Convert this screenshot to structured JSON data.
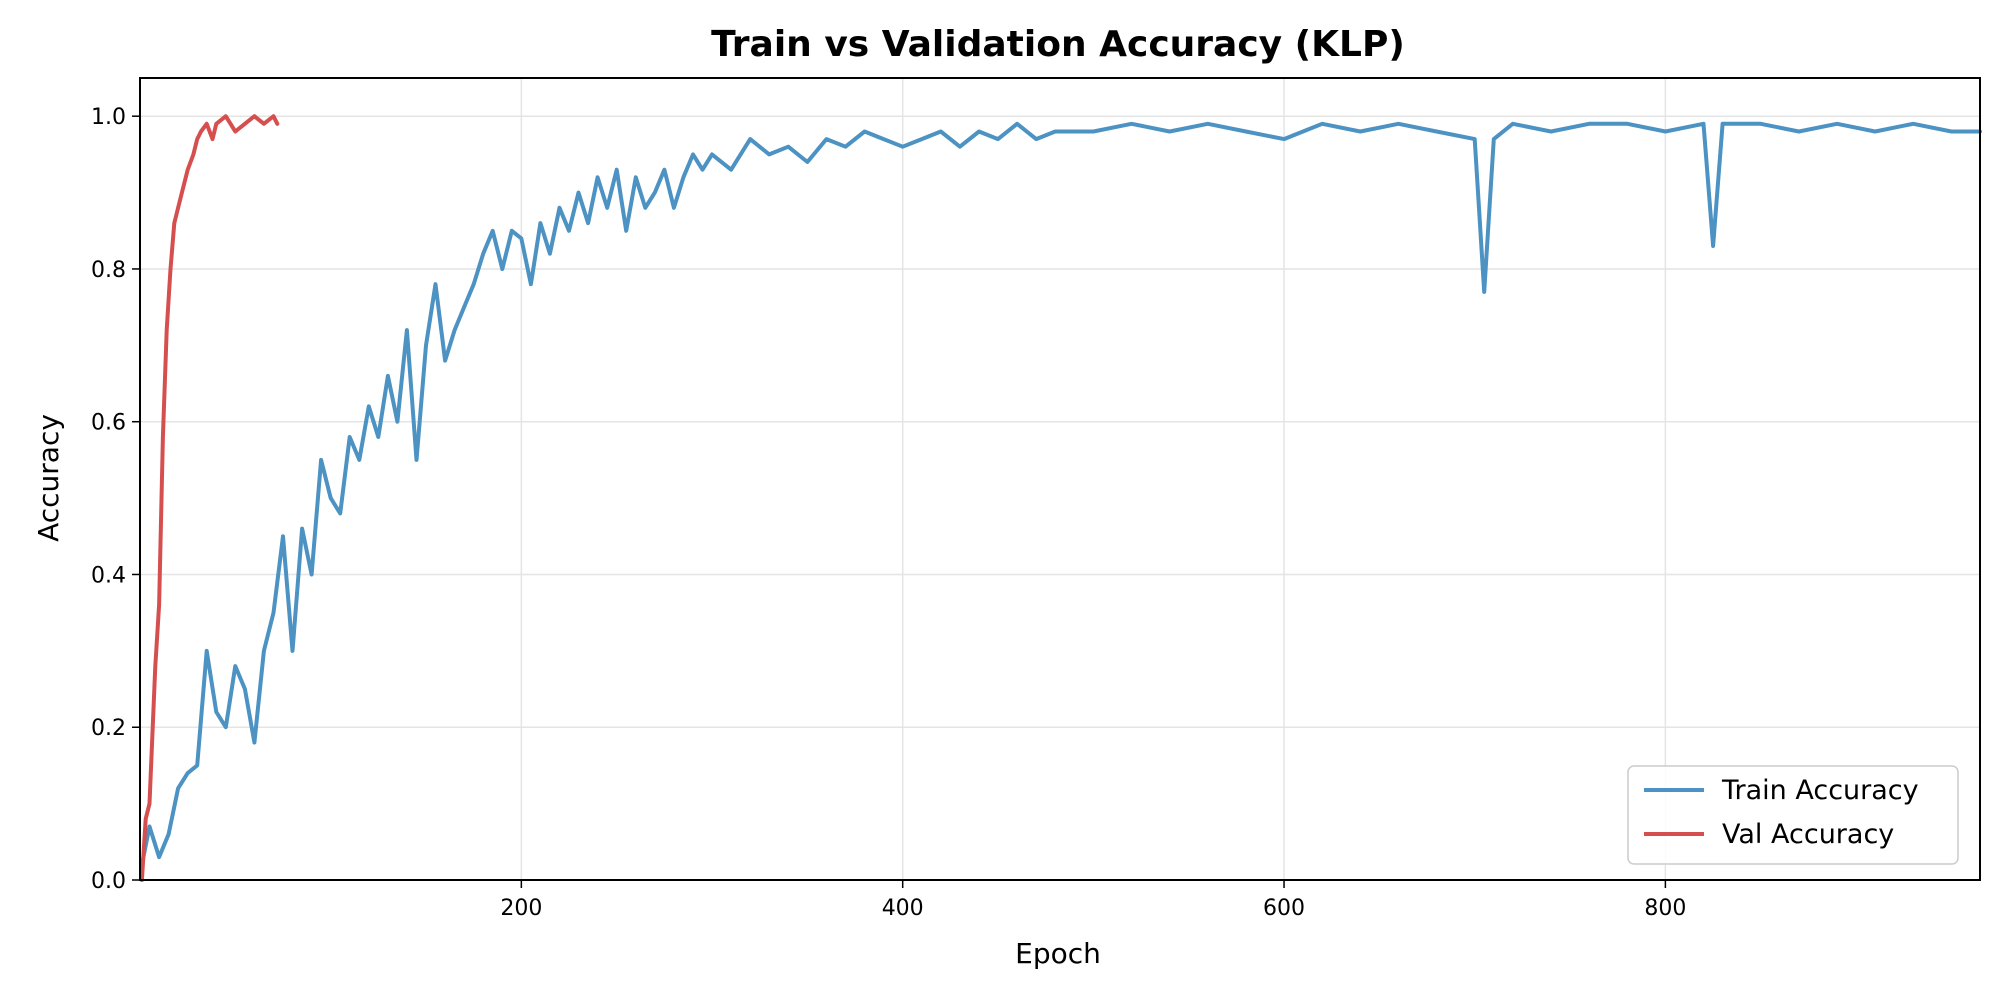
{
  "chart_data": {
    "type": "line",
    "title": "Train vs Validation Accuracy (KLP)",
    "xlabel": "Epoch",
    "ylabel": "Accuracy",
    "xlim": [
      0,
      965
    ],
    "ylim": [
      0,
      1.05
    ],
    "xticks": [
      200,
      400,
      600,
      800
    ],
    "yticks": [
      0.0,
      0.2,
      0.4,
      0.6,
      0.8,
      1.0
    ],
    "xtick_labels": [
      "200",
      "400",
      "600",
      "800"
    ],
    "ytick_labels": [
      "0.0",
      "0.2",
      "0.4",
      "0.6",
      "0.8",
      "1.0"
    ],
    "grid": true,
    "legend_position": "lower right",
    "series": [
      {
        "name": "Train Accuracy",
        "color": "#4c92c3",
        "x": [
          1,
          5,
          10,
          15,
          20,
          25,
          30,
          35,
          40,
          45,
          50,
          55,
          60,
          65,
          70,
          75,
          80,
          85,
          90,
          95,
          100,
          105,
          110,
          115,
          120,
          125,
          130,
          135,
          140,
          145,
          150,
          155,
          160,
          165,
          170,
          175,
          180,
          185,
          190,
          195,
          200,
          205,
          210,
          215,
          220,
          225,
          230,
          235,
          240,
          245,
          250,
          255,
          260,
          265,
          270,
          275,
          280,
          285,
          290,
          295,
          300,
          310,
          320,
          330,
          340,
          350,
          360,
          370,
          380,
          390,
          400,
          410,
          420,
          430,
          440,
          450,
          460,
          470,
          480,
          500,
          520,
          540,
          560,
          580,
          600,
          620,
          640,
          660,
          680,
          700,
          705,
          710,
          720,
          740,
          760,
          780,
          800,
          820,
          825,
          830,
          850,
          870,
          890,
          910,
          930,
          950,
          965
        ],
        "y": [
          0.02,
          0.07,
          0.03,
          0.06,
          0.12,
          0.14,
          0.15,
          0.3,
          0.22,
          0.2,
          0.28,
          0.25,
          0.18,
          0.3,
          0.35,
          0.45,
          0.3,
          0.46,
          0.4,
          0.55,
          0.5,
          0.48,
          0.58,
          0.55,
          0.62,
          0.58,
          0.66,
          0.6,
          0.72,
          0.55,
          0.7,
          0.78,
          0.68,
          0.72,
          0.75,
          0.78,
          0.82,
          0.85,
          0.8,
          0.85,
          0.84,
          0.78,
          0.86,
          0.82,
          0.88,
          0.85,
          0.9,
          0.86,
          0.92,
          0.88,
          0.93,
          0.85,
          0.92,
          0.88,
          0.9,
          0.93,
          0.88,
          0.92,
          0.95,
          0.93,
          0.95,
          0.93,
          0.97,
          0.95,
          0.96,
          0.94,
          0.97,
          0.96,
          0.98,
          0.97,
          0.96,
          0.97,
          0.98,
          0.96,
          0.98,
          0.97,
          0.99,
          0.97,
          0.98,
          0.98,
          0.99,
          0.98,
          0.99,
          0.98,
          0.97,
          0.99,
          0.98,
          0.99,
          0.98,
          0.97,
          0.77,
          0.97,
          0.99,
          0.98,
          0.99,
          0.99,
          0.98,
          0.99,
          0.83,
          0.99,
          0.99,
          0.98,
          0.99,
          0.98,
          0.99,
          0.98,
          0.98
        ]
      },
      {
        "name": "Val Accuracy",
        "color": "#d64f4f",
        "x": [
          1,
          3,
          5,
          8,
          10,
          12,
          14,
          16,
          18,
          20,
          22,
          25,
          28,
          30,
          32,
          35,
          38,
          40,
          45,
          50,
          55,
          60,
          65,
          70,
          72
        ],
        "y": [
          0.0,
          0.08,
          0.1,
          0.28,
          0.36,
          0.58,
          0.72,
          0.8,
          0.86,
          0.88,
          0.9,
          0.93,
          0.95,
          0.97,
          0.98,
          0.99,
          0.97,
          0.99,
          1.0,
          0.98,
          0.99,
          1.0,
          0.99,
          1.0,
          0.99
        ]
      }
    ]
  }
}
